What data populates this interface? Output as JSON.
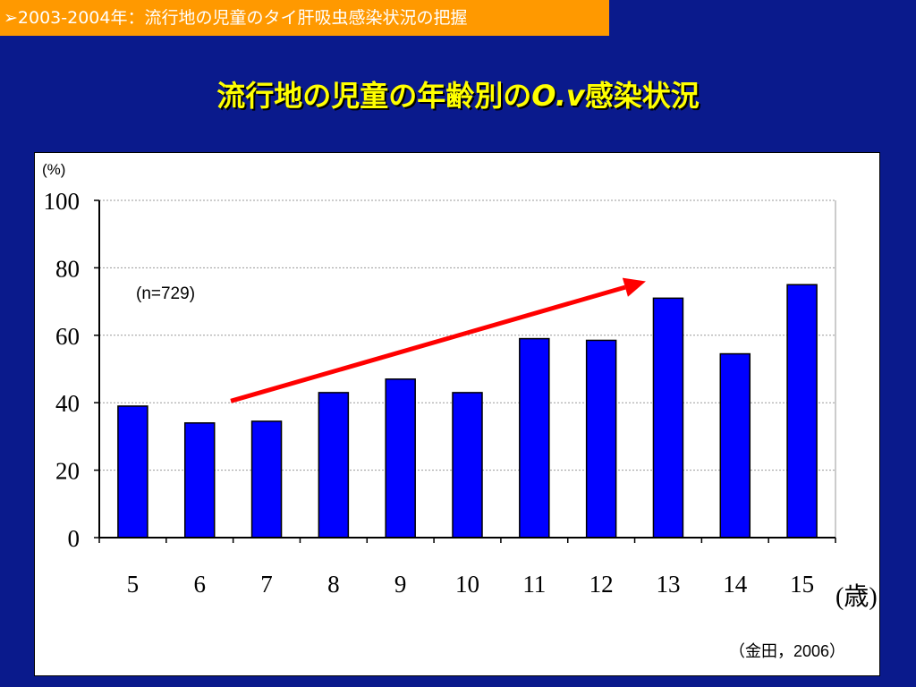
{
  "header": {
    "banner_text": "➢2003-2004年：流行地の児童のタイ肝吸虫感染状況の把握",
    "title_main": "流行地の児童の年齢別の",
    "title_italic": "O.v",
    "title_suffix": "感染状況"
  },
  "colors": {
    "background": "#0a1a8c",
    "banner": "#ff9900",
    "title": "#ffff00",
    "bar_fill": "#0000ff",
    "arrow": "#ff0000"
  },
  "chart_data": {
    "type": "bar",
    "categories": [
      "5",
      "6",
      "7",
      "8",
      "9",
      "10",
      "11",
      "12",
      "13",
      "14",
      "15"
    ],
    "values": [
      39,
      34,
      34.5,
      43,
      47,
      43,
      59,
      58.5,
      71,
      54.5,
      75
    ],
    "ylabel": "(%)",
    "xlabel": "(歳)",
    "ylim": [
      0,
      100
    ],
    "yticks": [
      "0",
      "20",
      "40",
      "60",
      "80",
      "100"
    ],
    "grid": true,
    "annotation": "(n=729)",
    "trend_arrow": {
      "from": {
        "category": "7",
        "value": 40.5
      },
      "to": {
        "category": "13",
        "value": 76
      }
    },
    "source": "（金田，2006）"
  }
}
